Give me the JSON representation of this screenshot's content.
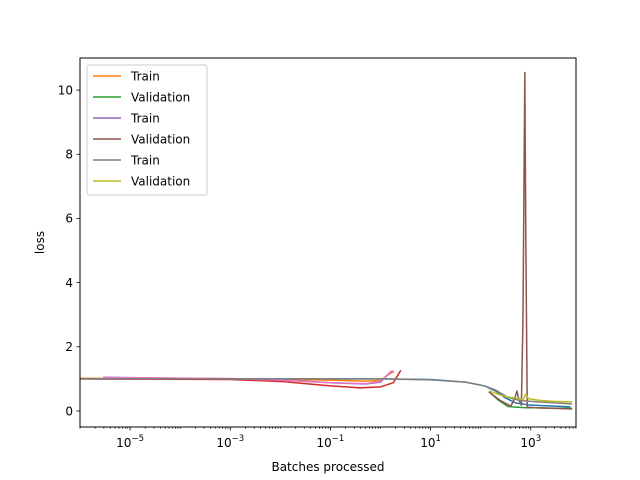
{
  "chart_data": {
    "type": "line",
    "xscale": "log",
    "xlabel": "Batches processed",
    "ylabel": "loss",
    "xlim": [
      1e-06,
      8000
    ],
    "ylim": [
      -0.5,
      11.0
    ],
    "xticks": [
      {
        "value": 1e-05,
        "base": "10",
        "exp": "−5"
      },
      {
        "value": 0.001,
        "base": "10",
        "exp": "−3"
      },
      {
        "value": 0.1,
        "base": "10",
        "exp": "−1"
      },
      {
        "value": 10,
        "base": "10",
        "exp": "1"
      },
      {
        "value": 1000,
        "base": "10",
        "exp": "3"
      }
    ],
    "yticks": [
      {
        "value": 0,
        "label": "0"
      },
      {
        "value": 2,
        "label": "2"
      },
      {
        "value": 4,
        "label": "4"
      },
      {
        "value": 6,
        "label": "6"
      },
      {
        "value": 8,
        "label": "8"
      },
      {
        "value": 10,
        "label": "10"
      }
    ],
    "grid": false,
    "legend_position": "top-left",
    "series": [
      {
        "name": "",
        "color": "#1f77b4",
        "points": [
          [
            1e-06,
            1.0
          ],
          [
            0.001,
            1.0
          ],
          [
            0.1,
            1.0
          ],
          [
            1,
            1.0
          ],
          [
            10,
            0.98
          ],
          [
            50,
            0.9
          ],
          [
            120,
            0.78
          ],
          [
            200,
            0.62
          ],
          [
            300,
            0.42
          ],
          [
            500,
            0.25
          ],
          [
            1000,
            0.18
          ],
          [
            3000,
            0.15
          ],
          [
            6000,
            0.13
          ]
        ]
      },
      {
        "name": "Train",
        "color": "#ff7f0e",
        "points": [
          [
            1e-06,
            1.02
          ],
          [
            1e-05,
            1.01
          ],
          [
            0.001,
            1.0
          ],
          [
            0.01,
            0.98
          ],
          [
            0.1,
            0.96
          ],
          [
            0.5,
            0.93
          ],
          [
            1.0,
            0.95
          ],
          [
            1.5,
            1.15
          ],
          [
            1.8,
            1.22
          ]
        ]
      },
      {
        "name": "Validation",
        "color": "#2ca02c",
        "points": [
          [
            150,
            0.58
          ],
          [
            220,
            0.35
          ],
          [
            350,
            0.14
          ],
          [
            500,
            0.12
          ],
          [
            800,
            0.1
          ],
          [
            1200,
            0.1
          ],
          [
            2500,
            0.09
          ],
          [
            6500,
            0.08
          ]
        ]
      },
      {
        "name": "",
        "color": "#d62728",
        "points": [
          [
            1e-06,
            1.0
          ],
          [
            0.001,
            0.98
          ],
          [
            0.01,
            0.92
          ],
          [
            0.1,
            0.78
          ],
          [
            0.4,
            0.72
          ],
          [
            1.0,
            0.75
          ],
          [
            1.8,
            0.88
          ],
          [
            2.5,
            1.25
          ]
        ]
      },
      {
        "name": "Train",
        "color": "#9467bd",
        "points": [
          [
            3e-06,
            1.05
          ],
          [
            1e-05,
            1.04
          ],
          [
            0.001,
            1.0
          ],
          [
            0.01,
            0.97
          ],
          [
            0.1,
            0.88
          ],
          [
            0.5,
            0.84
          ],
          [
            1.0,
            0.9
          ],
          [
            1.6,
            1.22
          ]
        ]
      },
      {
        "name": "Validation",
        "color": "#8c564b",
        "points": [
          [
            150,
            0.58
          ],
          [
            250,
            0.32
          ],
          [
            400,
            0.15
          ],
          [
            480,
            0.4
          ],
          [
            530,
            0.62
          ],
          [
            580,
            0.35
          ],
          [
            650,
            0.18
          ],
          [
            700,
            3.0
          ],
          [
            760,
            10.55
          ],
          [
            800,
            5.0
          ],
          [
            850,
            0.12
          ],
          [
            1200,
            0.1
          ],
          [
            3000,
            0.08
          ],
          [
            6500,
            0.06
          ]
        ]
      },
      {
        "name": "",
        "color": "#e377c2",
        "points": [
          [
            3e-06,
            1.04
          ],
          [
            0.001,
            1.01
          ],
          [
            0.01,
            0.96
          ],
          [
            0.1,
            0.88
          ],
          [
            0.5,
            0.85
          ],
          [
            1.0,
            0.92
          ],
          [
            1.5,
            1.18
          ],
          [
            1.7,
            1.25
          ]
        ]
      },
      {
        "name": "Train",
        "color": "#7f7f7f",
        "points": [
          [
            1e-06,
            1.0
          ],
          [
            0.001,
            1.0
          ],
          [
            0.1,
            1.0
          ],
          [
            1,
            1.0
          ],
          [
            10,
            0.97
          ],
          [
            50,
            0.9
          ],
          [
            120,
            0.78
          ],
          [
            200,
            0.65
          ],
          [
            350,
            0.42
          ],
          [
            600,
            0.33
          ],
          [
            1000,
            0.3
          ],
          [
            3000,
            0.25
          ],
          [
            6500,
            0.22
          ]
        ]
      },
      {
        "name": "Validation",
        "color": "#bcbd22",
        "points": [
          [
            150,
            0.62
          ],
          [
            300,
            0.45
          ],
          [
            500,
            0.4
          ],
          [
            700,
            0.35
          ],
          [
            800,
            0.52
          ],
          [
            900,
            0.38
          ],
          [
            1500,
            0.33
          ],
          [
            3000,
            0.3
          ],
          [
            6500,
            0.28
          ]
        ]
      }
    ]
  }
}
